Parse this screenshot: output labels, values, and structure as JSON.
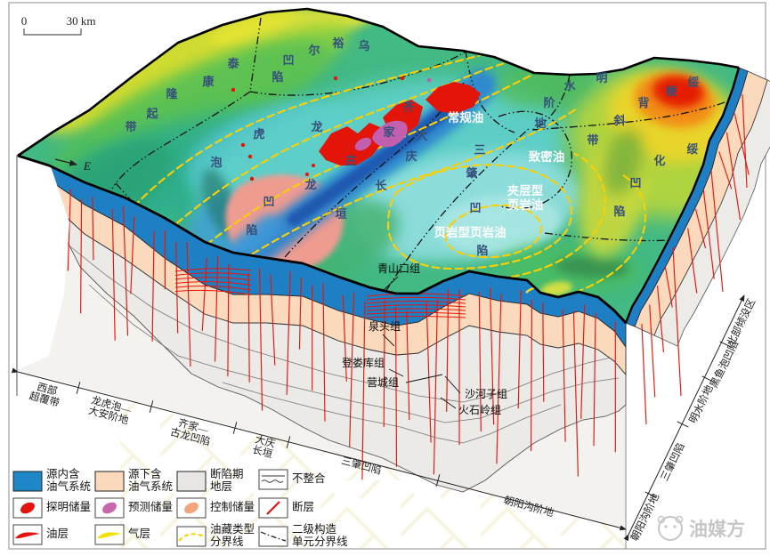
{
  "scalebar": {
    "zero": "0",
    "distance": "30 km"
  },
  "compass": {
    "east": "E"
  },
  "surface_units": [
    {
      "id": "taikang-uplift-belt",
      "name": "泰康隆起带"
    },
    {
      "id": "wuyuer-sag",
      "name": "乌裕尔凹陷"
    },
    {
      "id": "longhupao",
      "name": "龙虎泡"
    },
    {
      "id": "qijia",
      "name": "齐家"
    },
    {
      "id": "gulong-sag",
      "name": "古龙凹陷"
    },
    {
      "id": "daqing-changyuan",
      "name": "大庆长垣"
    },
    {
      "id": "sanzhao-sag",
      "name": "三肇凹陷"
    },
    {
      "id": "mingshui-terrace",
      "name": "明水阶地"
    },
    {
      "id": "suiling-anticline-belt",
      "name": "绥棱背斜带"
    },
    {
      "id": "suihua-sag",
      "name": "绥化凹陷"
    }
  ],
  "oil_types": {
    "conventional": "常规油",
    "tight": "致密油",
    "interbedded_line1": "夹层型",
    "interbedded_line2": "页岩油",
    "shale": "页岩型页岩油"
  },
  "formations": [
    "青山口组",
    "泉头组",
    "登娄库组",
    "营城组",
    "沙河子组",
    "火石岭组"
  ],
  "bottom_axis": [
    {
      "line1": "西部",
      "line2": "超覆带"
    },
    {
      "line1": "龙虎泡—",
      "line2": "大安阶地"
    },
    {
      "line1": "齐家—",
      "line2": "古龙凹陷"
    },
    {
      "line1": "大庆",
      "line2": "长垣"
    },
    {
      "line1": "三肇凹陷",
      "line2": ""
    },
    {
      "line1": "朝阳沟阶地",
      "line2": ""
    }
  ],
  "right_axis": [
    "朝阳沟阶地",
    "三肇凹陷",
    "明水阶地",
    "黑鱼泡凹陷",
    "北部倾没区"
  ],
  "legend": [
    {
      "id": "in-source-system",
      "type": "fill",
      "color": "#1d87c8",
      "lines": [
        "源内含",
        "油气系统"
      ]
    },
    {
      "id": "sub-source-system",
      "type": "fill",
      "color": "#fbd9bc",
      "lines": [
        "源下含",
        "油气系统"
      ]
    },
    {
      "id": "fault-depression-strata",
      "type": "fill",
      "color": "#e7e6e3",
      "lines": [
        "断陷期",
        "地层"
      ]
    },
    {
      "id": "unconformity",
      "type": "unconformity",
      "color": "#333333",
      "lines": [
        "不整合"
      ]
    },
    {
      "id": "proven-reserves",
      "type": "ellipse",
      "color": "#e31310",
      "lines": [
        "探明储量"
      ]
    },
    {
      "id": "predicted-reserves",
      "type": "ellipse",
      "color": "#c765ae",
      "lines": [
        "预测储量"
      ]
    },
    {
      "id": "controlled-reserves",
      "type": "ellipse",
      "color": "#f5a57e",
      "lines": [
        "控制储量"
      ]
    },
    {
      "id": "fault",
      "type": "fault",
      "color": "#e31310",
      "lines": [
        "断层"
      ]
    },
    {
      "id": "oil-layer",
      "type": "oil-layer",
      "color": "#e31310",
      "lines": [
        "油层"
      ]
    },
    {
      "id": "gas-layer",
      "type": "gas-layer",
      "color": "#f0e20c",
      "lines": [
        "气层"
      ]
    },
    {
      "id": "reservoir-type-boundary",
      "type": "res-boundary",
      "color": "#fccf03",
      "lines": [
        "油藏类型",
        "分界线"
      ]
    },
    {
      "id": "structural-unit-boundary",
      "type": "unit-boundary",
      "color": "#111111",
      "lines": [
        "二级构造",
        "单元分界线"
      ]
    }
  ],
  "watermark": {
    "brand": "油媒方"
  }
}
